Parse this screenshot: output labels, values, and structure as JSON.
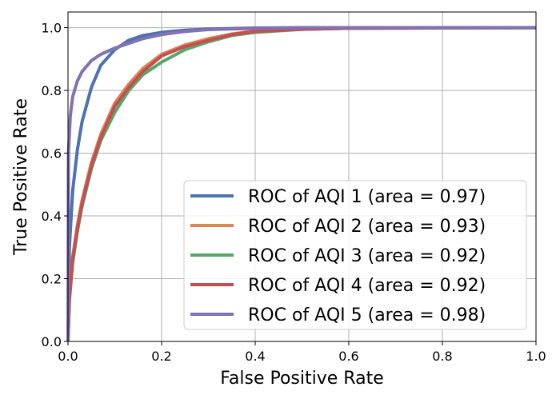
{
  "chart_data": {
    "type": "line",
    "xlabel": "False Positive Rate",
    "ylabel": "True Positive Rate",
    "xlim": [
      0.0,
      1.0
    ],
    "ylim": [
      0.0,
      1.05
    ],
    "xticks": [
      "0.0",
      "0.2",
      "0.4",
      "0.6",
      "0.8",
      "1.0"
    ],
    "yticks": [
      "0.0",
      "0.2",
      "0.4",
      "0.6",
      "0.8",
      "1.0"
    ],
    "grid": true,
    "legend_position": "lower-right",
    "series": [
      {
        "name": "ROC of AQI 1 (area = 0.97)",
        "color": "#4C72B0",
        "x": [
          0,
          0.003,
          0.01,
          0.02,
          0.03,
          0.05,
          0.07,
          0.1,
          0.13,
          0.16,
          0.2,
          0.25,
          0.3,
          0.4,
          0.5,
          0.7,
          1.0
        ],
        "y": [
          0,
          0.3,
          0.48,
          0.61,
          0.7,
          0.81,
          0.88,
          0.93,
          0.96,
          0.975,
          0.985,
          0.992,
          0.996,
          0.999,
          1.0,
          1.0,
          1.0
        ]
      },
      {
        "name": "ROC of AQI 2 (area = 0.93)",
        "color": "#DD8452",
        "x": [
          0,
          0.003,
          0.01,
          0.02,
          0.03,
          0.05,
          0.07,
          0.1,
          0.13,
          0.16,
          0.2,
          0.25,
          0.3,
          0.35,
          0.4,
          0.5,
          0.6,
          0.8,
          1.0
        ],
        "y": [
          0,
          0.15,
          0.27,
          0.37,
          0.45,
          0.57,
          0.66,
          0.76,
          0.82,
          0.87,
          0.915,
          0.945,
          0.965,
          0.98,
          0.99,
          0.995,
          0.998,
          0.999,
          1.0
        ]
      },
      {
        "name": "ROC of AQI 3 (area = 0.92)",
        "color": "#55A868",
        "x": [
          0,
          0.003,
          0.01,
          0.02,
          0.03,
          0.05,
          0.07,
          0.1,
          0.13,
          0.16,
          0.2,
          0.25,
          0.3,
          0.35,
          0.4,
          0.5,
          0.6,
          0.8,
          1.0
        ],
        "y": [
          0,
          0.13,
          0.25,
          0.35,
          0.43,
          0.55,
          0.64,
          0.73,
          0.8,
          0.85,
          0.89,
          0.93,
          0.955,
          0.975,
          0.985,
          0.995,
          0.998,
          0.999,
          1.0
        ]
      },
      {
        "name": "ROC of AQI 4 (area = 0.92)",
        "color": "#C44E52",
        "x": [
          0,
          0.003,
          0.01,
          0.02,
          0.03,
          0.05,
          0.07,
          0.1,
          0.13,
          0.16,
          0.2,
          0.25,
          0.3,
          0.35,
          0.4,
          0.5,
          0.6,
          0.8,
          1.0
        ],
        "y": [
          0,
          0.14,
          0.26,
          0.36,
          0.44,
          0.56,
          0.65,
          0.75,
          0.81,
          0.86,
          0.91,
          0.94,
          0.96,
          0.978,
          0.988,
          0.995,
          0.998,
          0.999,
          1.0
        ]
      },
      {
        "name": "ROC of AQI 5 (area = 0.98)",
        "color": "#8172B3",
        "x": [
          0,
          0.001,
          0.005,
          0.01,
          0.02,
          0.03,
          0.05,
          0.07,
          0.1,
          0.13,
          0.16,
          0.2,
          0.25,
          0.3,
          0.4,
          0.5,
          0.7,
          1.0
        ],
        "y": [
          0,
          0.6,
          0.72,
          0.78,
          0.83,
          0.86,
          0.895,
          0.915,
          0.935,
          0.95,
          0.965,
          0.978,
          0.988,
          0.994,
          0.998,
          1.0,
          1.0,
          1.0
        ]
      }
    ]
  }
}
